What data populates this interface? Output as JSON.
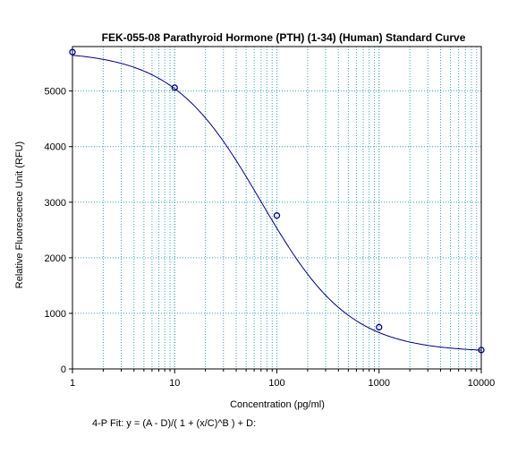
{
  "chart_data": {
    "type": "scatter",
    "title": "FEK-055-08 Parathyroid Hormone (PTH) (1-34) (Human) Standard Curve",
    "xlabel": "Concentration (pg/ml)",
    "ylabel": "Relative Fluorescence Unit (RFU)",
    "x_scale": "log",
    "xlim": [
      1,
      10000
    ],
    "ylim": [
      0,
      5800
    ],
    "x_ticks": [
      "1",
      "10",
      "100",
      "1000",
      "10000"
    ],
    "y_ticks": [
      "0",
      "1000",
      "2000",
      "3000",
      "4000",
      "5000"
    ],
    "grid": true,
    "series": [
      {
        "x": [
          1,
          10,
          100,
          1000,
          10000
        ],
        "y": [
          5700,
          5060,
          2760,
          750,
          340
        ]
      }
    ],
    "fit_curve": {
      "model": "4-P",
      "A": 5720,
      "B": 1.0,
      "C": 70,
      "D": 300
    },
    "colors": {
      "curve": "#000080",
      "points": "#000080",
      "grid": "#3aa0b8"
    }
  },
  "footer": {
    "fit_equation": "4-P Fit:  y = (A - D)/( 1 + (x/C)^B ) + D:"
  }
}
